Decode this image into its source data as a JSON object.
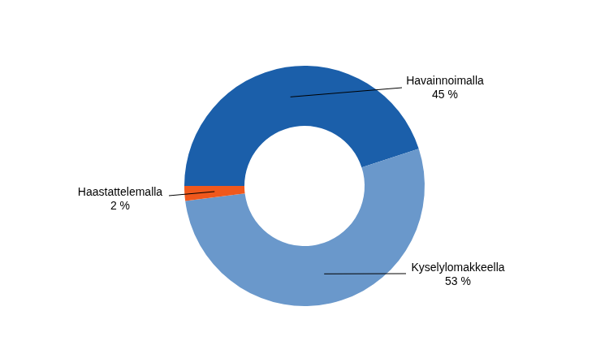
{
  "chart_data": {
    "type": "doughnut",
    "categories": [
      "Havainnoimalla",
      "Kyselylomakkeella",
      "Haastattelemalla"
    ],
    "values": [
      45,
      53,
      2
    ],
    "value_labels": [
      "45 %",
      "53 %",
      "2 %"
    ],
    "colors": [
      "#1b5faa",
      "#6a98cb",
      "#f0581c"
    ],
    "data_labels": true
  }
}
